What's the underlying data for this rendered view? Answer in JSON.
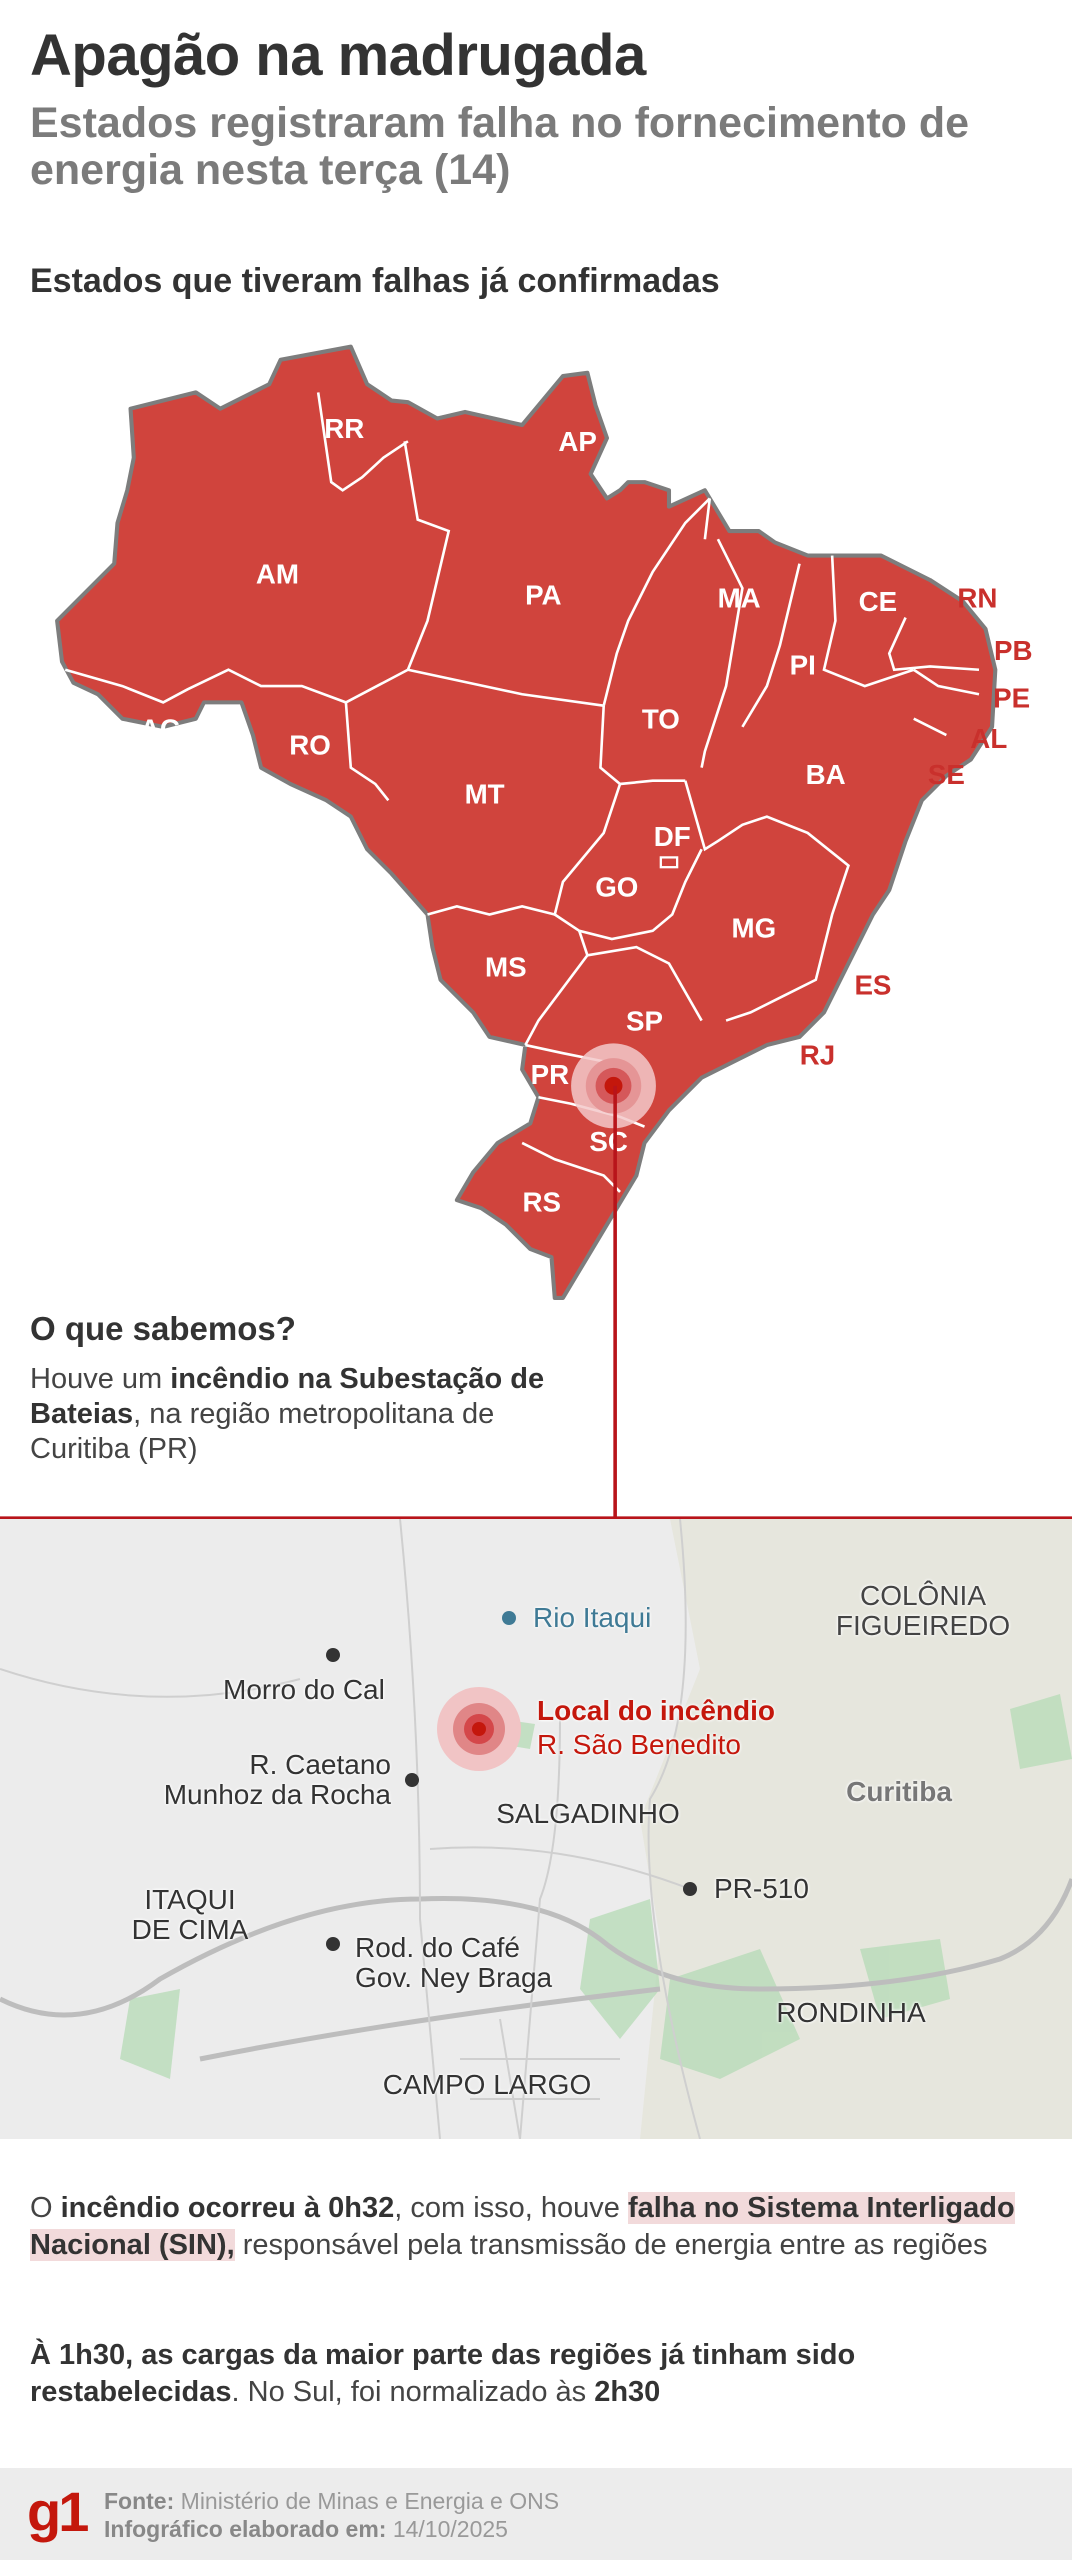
{
  "header": {
    "title": "Apagão na madrugada",
    "subtitle": "Estados registraram falha no fornecimento de energia nesta terça (14)"
  },
  "map": {
    "title": "Estados que tiveram falhas já confirmadas",
    "fill_color": "#d0443d",
    "states": [
      "RR",
      "AP",
      "AM",
      "PA",
      "MA",
      "CE",
      "PI",
      "AC",
      "RO",
      "TO",
      "BA",
      "MT",
      "DF",
      "GO",
      "MG",
      "MS",
      "SP",
      "PR",
      "SC",
      "RS"
    ],
    "outside_labels": [
      "RN",
      "PB",
      "PE",
      "AL",
      "SE",
      "ES",
      "RJ"
    ]
  },
  "know": {
    "heading": "O que sabemos?",
    "p1": "Houve um ",
    "p1b": "incêndio na Subestação de Bateias",
    "p1c": ", na região metropolitana de Curitiba (PR)"
  },
  "street_map": {
    "labels": {
      "rio": "Rio Itaqui",
      "colonia1": "COLÔNIA",
      "colonia2": "FIGUEIREDO",
      "morro": "Morro do Cal",
      "fire1": "Local do incêndio",
      "fire2": "R. São Benedito",
      "caetano1": "R. Caetano",
      "caetano2": "Munhoz da Rocha",
      "salgadinho": "SALGADINHO",
      "curitiba": "Curitiba",
      "itaqui1": "ITAQUI",
      "itaqui2": "DE CIMA",
      "pr510": "PR-510",
      "cafe1": "Rod. do Café",
      "cafe2": "Gov. Ney Braga",
      "rondinha": "RONDINHA",
      "campo": "CAMPO LARGO"
    }
  },
  "body": {
    "a1": "O ",
    "a2": "incêndio ocorreu à 0h32",
    "a3": ", com isso, houve ",
    "a4": "falha no Sistema Interligado Nacional (SIN),",
    "a5": " responsável pela transmissão de energia entre as regiões",
    "b1": "À 1h30, as cargas da maior parte das regiões já tinham sido restabelecidas",
    "b2": ". No Sul, foi normalizado às ",
    "b3": "2h30"
  },
  "footer": {
    "logo": "g1",
    "source_label": "Fonte:",
    "source": " Ministério de Minas e Energia e ONS",
    "date_label": "Infográfico elaborado em:",
    "date": " 14/10/2025"
  }
}
